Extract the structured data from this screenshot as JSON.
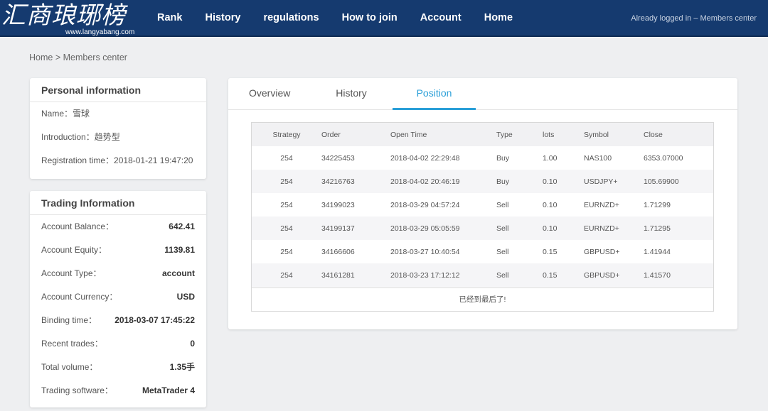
{
  "header": {
    "logo_text": "汇商琅琊榜",
    "logo_url": "www.langyabang.com",
    "nav": [
      "Rank",
      "History",
      "regulations",
      "How to join",
      "Account",
      "Home"
    ],
    "login_status": "Already logged in – Members center",
    "bg_color": "#153a6f"
  },
  "breadcrumb": {
    "home": "Home",
    "separator": ">",
    "current": "Members center"
  },
  "personal_info": {
    "title": "Personal information",
    "rows": [
      {
        "label": "Name：",
        "value": "雪球"
      },
      {
        "label": "Introduction：",
        "value": "趋势型"
      },
      {
        "label": "Registration time：",
        "value": "2018-01-21 19:47:20"
      }
    ]
  },
  "trading_info": {
    "title": "Trading Information",
    "rows": [
      {
        "label": "Account Balance：",
        "value": "642.41"
      },
      {
        "label": "Account Equity：",
        "value": "1139.81"
      },
      {
        "label": "Account Type：",
        "value": "account"
      },
      {
        "label": "Account Currency：",
        "value": "USD"
      },
      {
        "label": "Binding time：",
        "value": "2018-03-07 17:45:22"
      },
      {
        "label": "Recent trades：",
        "value": "0"
      },
      {
        "label": "Total volume：",
        "value": "1.35手"
      },
      {
        "label": "Trading software：",
        "value": "MetaTrader 4"
      }
    ]
  },
  "tabs": [
    "Overview",
    "History",
    "Position"
  ],
  "active_tab": "Position",
  "accent_color": "#2a9fd8",
  "positions": {
    "columns": [
      "Strategy",
      "Order",
      "Open Time",
      "Type",
      "lots",
      "Symbol",
      "Close"
    ],
    "rows": [
      [
        "254",
        "34225453",
        "2018-04-02 22:29:48",
        "Buy",
        "1.00",
        "NAS100",
        "6353.07000"
      ],
      [
        "254",
        "34216763",
        "2018-04-02 20:46:19",
        "Buy",
        "0.10",
        "USDJPY+",
        "105.69900"
      ],
      [
        "254",
        "34199023",
        "2018-03-29 04:57:24",
        "Sell",
        "0.10",
        "EURNZD+",
        "1.71299"
      ],
      [
        "254",
        "34199137",
        "2018-03-29 05:05:59",
        "Sell",
        "0.10",
        "EURNZD+",
        "1.71295"
      ],
      [
        "254",
        "34166606",
        "2018-03-27 10:40:54",
        "Sell",
        "0.15",
        "GBPUSD+",
        "1.41944"
      ],
      [
        "254",
        "34161281",
        "2018-03-23 17:12:12",
        "Sell",
        "0.15",
        "GBPUSD+",
        "1.41570"
      ]
    ],
    "footer": "已经到最后了!"
  }
}
